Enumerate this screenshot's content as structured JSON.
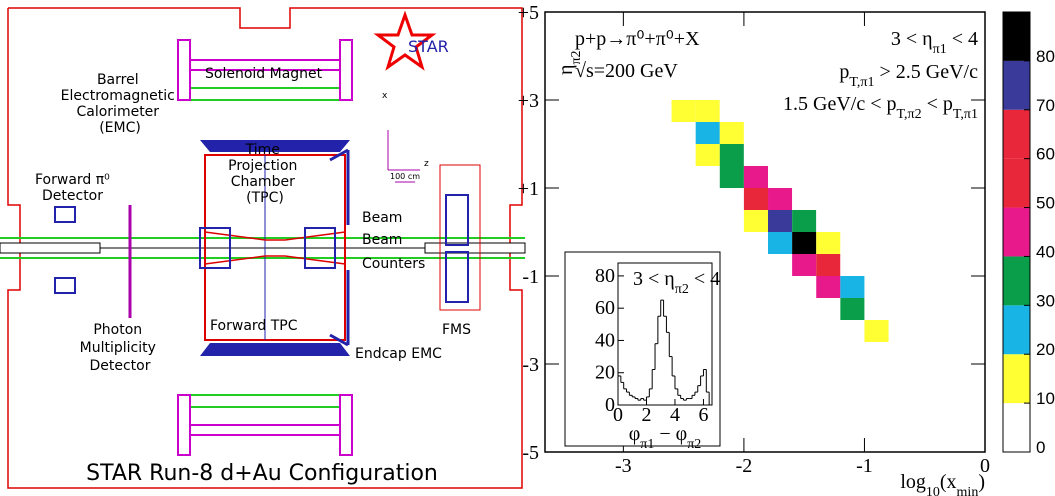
{
  "diagram": {
    "star_logo": "STAR",
    "solenoid": "Solenoid Magnet",
    "bemc": [
      "Barrel",
      "Electromagnetic",
      "Calorimeter",
      "(EMC)"
    ],
    "axis_x": "x",
    "axis_z": "z",
    "scale": "100 cm",
    "tpc": [
      "Time",
      "Projection",
      "Chamber",
      "(TPC)"
    ],
    "fpd": [
      "Forward π⁰",
      "Detector"
    ],
    "bbc": [
      "Beam",
      "Beam",
      "Counters"
    ],
    "fms": "FMS",
    "pmd": [
      "Photon",
      "Multiplicity",
      "Detector"
    ],
    "ftpc": "Forward TPC",
    "eemc": "Endcap EMC",
    "caption": "STAR Run-8 d+Au Configuration"
  },
  "chart_data": [
    {
      "type": "heatmap",
      "annotations": [
        [
          "p+p→π⁰+π⁰+X"
        ],
        [
          "√s=200 GeV"
        ],
        [
          "3 < η",
          "π1",
          " < 4"
        ],
        [
          "p",
          "T,π1",
          " > 2.5 GeV/c"
        ],
        [
          "1.5 GeV/c < p",
          "T,π2",
          " < p",
          "T,π1"
        ]
      ],
      "x_label": [
        "log",
        "10",
        "(x",
        "min",
        ")"
      ],
      "y_label": [
        "η",
        "π2"
      ],
      "xlim": [
        -3.65,
        0
      ],
      "xticks": [
        -3,
        -2,
        -1,
        0
      ],
      "ylim": [
        -5,
        5
      ],
      "yticks": [
        -5,
        -3,
        -1,
        {
          "value": 1,
          "label": "+1"
        },
        {
          "value": 3,
          "label": "+3"
        },
        {
          "value": 5,
          "label": "+5"
        }
      ],
      "x_bins": [
        -2.6,
        -2.4,
        -2.2,
        -2.0,
        -1.8,
        -1.6,
        -1.4,
        -1.2,
        -1.0,
        -0.8
      ],
      "y_bins": [
        -3.5,
        -3,
        -2.5,
        -2,
        -1.5,
        -1,
        -0.5,
        0,
        0.5,
        1,
        1.5,
        2,
        2.5,
        3
      ],
      "values": [
        [
          0,
          0,
          0,
          0,
          0,
          0,
          0,
          0,
          0
        ],
        [
          0,
          0,
          0,
          0,
          0,
          0,
          0,
          0,
          6
        ],
        [
          0,
          0,
          0,
          0,
          0,
          0,
          0,
          9,
          15
        ],
        [
          0,
          0,
          0,
          0,
          0,
          0,
          9,
          31,
          9
        ],
        [
          0,
          0,
          0,
          0,
          0,
          6,
          44,
          28,
          0
        ],
        [
          0,
          0,
          0,
          0,
          3,
          46,
          55,
          6,
          0
        ],
        [
          0,
          0,
          0,
          0,
          28,
          80,
          17,
          0,
          0
        ],
        [
          0,
          0,
          0,
          15,
          70,
          34,
          0,
          0,
          0
        ],
        [
          0,
          0,
          6,
          50,
          42,
          4,
          0,
          0,
          0
        ],
        [
          0,
          0,
          31,
          42,
          6,
          0,
          0,
          0,
          0
        ],
        [
          0,
          15,
          36,
          9,
          0,
          0,
          0,
          0,
          0
        ],
        [
          5,
          25,
          11,
          0,
          0,
          0,
          0,
          0,
          0
        ],
        [
          12,
          10,
          0,
          0,
          0,
          0,
          0,
          0,
          0
        ]
      ],
      "zlim": [
        0,
        90
      ],
      "zticks": [
        0,
        10,
        20,
        30,
        40,
        50,
        60,
        70,
        80
      ],
      "colors": [
        "#ffffff",
        "#ffff33",
        "#19b4e6",
        "#0a9e4a",
        "#e8198b",
        "#e8283a",
        "#e8283a",
        "#3a3a9a",
        "#000000"
      ]
    },
    {
      "type": "histogram",
      "annotation": [
        "3 < η",
        "π2",
        " < 4"
      ],
      "x_label": [
        "φ",
        "π1",
        " − φ",
        "π2"
      ],
      "xlim": [
        0,
        6.6
      ],
      "xticks": [
        0,
        2,
        4,
        6
      ],
      "ylim": [
        0,
        88
      ],
      "yticks": [
        0,
        20,
        40,
        60,
        80
      ],
      "color": "#000000",
      "bins": [
        0,
        0.2,
        0.4,
        0.6,
        0.8,
        1.0,
        1.2,
        1.4,
        1.6,
        1.8,
        2.0,
        2.2,
        2.4,
        2.6,
        2.8,
        3.0,
        3.2,
        3.4,
        3.6,
        3.8,
        4.0,
        4.2,
        4.4,
        4.6,
        4.8,
        5.0,
        5.2,
        5.4,
        5.6,
        5.8,
        6.0,
        6.2,
        6.4,
        6.6
      ],
      "values": [
        18,
        14,
        10,
        8,
        6,
        5,
        4,
        3,
        4,
        3,
        5,
        10,
        22,
        38,
        55,
        65,
        55,
        45,
        30,
        18,
        10,
        6,
        4,
        3,
        4,
        4,
        6,
        8,
        12,
        18,
        22,
        8,
        0
      ]
    }
  ]
}
